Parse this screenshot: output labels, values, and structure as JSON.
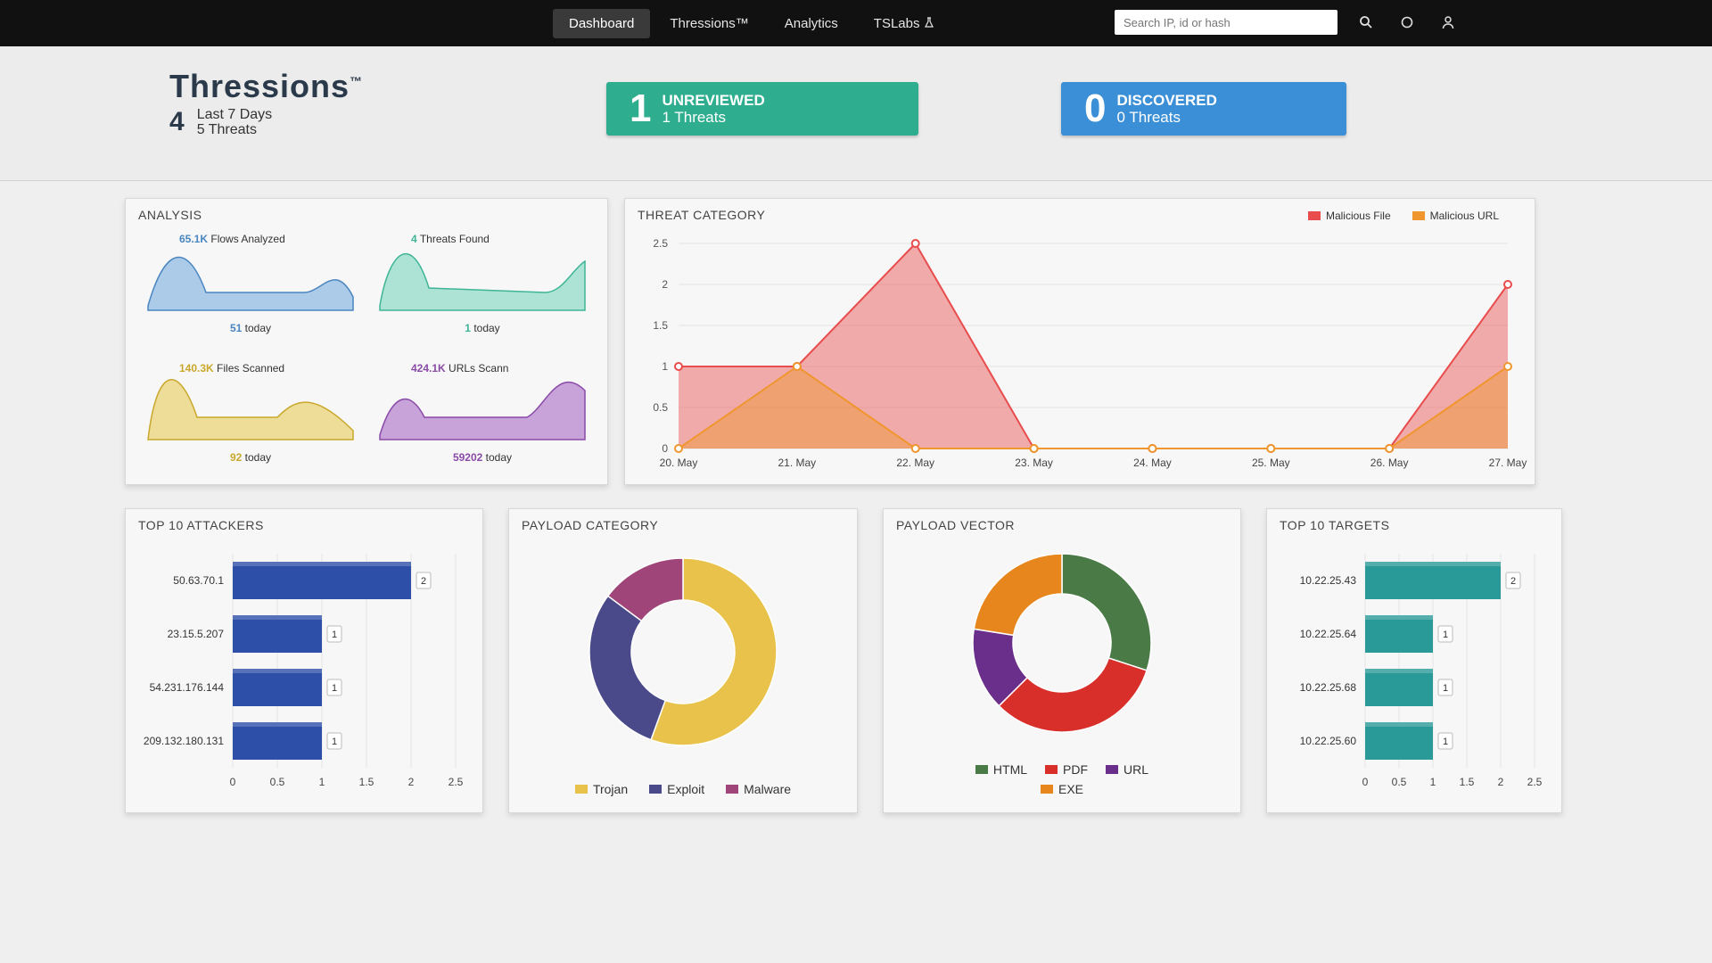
{
  "nav": {
    "tabs": [
      {
        "label": "Dashboard",
        "active": true
      },
      {
        "label": "Thressions™",
        "active": false
      },
      {
        "label": "Analytics",
        "active": false
      },
      {
        "label": "TSLabs",
        "active": false
      }
    ],
    "search_placeholder": "Search IP, id or hash",
    "icons": [
      "search-icon",
      "circle-icon",
      "user-icon"
    ]
  },
  "brand": {
    "title": "Thressions",
    "tm": "™",
    "count": "4",
    "line1": "Last 7 Days",
    "line2": "5 Threats"
  },
  "unreviewed": {
    "count": "1",
    "label": "UNREVIEWED",
    "sub": "1 Threats",
    "color": "#2fae8f"
  },
  "discovered": {
    "count": "0",
    "label": "DISCOVERED",
    "sub": "0 Threats",
    "color": "#3b8fd6"
  },
  "analysis": {
    "title": "ANALYSIS",
    "cards": [
      {
        "num": "65.1K",
        "label": "Flows Analyzed",
        "today_num": "51",
        "today": "today",
        "color": "#6fa8dc"
      },
      {
        "num": "4",
        "label": "Threats Found",
        "today_num": "1",
        "today": "today",
        "color": "#6fd3b8"
      },
      {
        "num": "140.3K",
        "label": "Files Scanned",
        "today_num": "92",
        "today": "today",
        "color": "#e8c95a"
      },
      {
        "num": "424.1K",
        "label": "URLs Scann",
        "today_num": "59202",
        "today": "today",
        "color": "#a66bc4"
      }
    ]
  },
  "threat_category": {
    "title": "THREAT CATEGORY",
    "legend": [
      {
        "label": "Malicious File",
        "color": "#e84c4c"
      },
      {
        "label": "Malicious URL",
        "color": "#f0962e"
      }
    ]
  },
  "top_attackers": {
    "title": "TOP 10 ATTACKERS"
  },
  "payload_category": {
    "title": "PAYLOAD CATEGORY",
    "legend": [
      {
        "label": "Trojan",
        "color": "#e8c24a"
      },
      {
        "label": "Exploit",
        "color": "#4a4a8a"
      },
      {
        "label": "Malware",
        "color": "#a0457a"
      }
    ]
  },
  "payload_vector": {
    "title": "PAYLOAD VECTOR",
    "legend": [
      {
        "label": "HTML",
        "color": "#4a7a45"
      },
      {
        "label": "PDF",
        "color": "#d92f2a"
      },
      {
        "label": "URL",
        "color": "#6a2f8a"
      },
      {
        "label": "EXE",
        "color": "#e8861e"
      }
    ]
  },
  "top_targets": {
    "title": "TOP 10 TARGETS"
  },
  "chart_data": [
    {
      "type": "area",
      "title": "THREAT CATEGORY",
      "categories": [
        "20. May",
        "21. May",
        "22. May",
        "23. May",
        "24. May",
        "25. May",
        "26. May",
        "27. May"
      ],
      "ylim": [
        0,
        2.5
      ],
      "yticks": [
        "0",
        "0.5",
        "1",
        "1.5",
        "2",
        "2.5"
      ],
      "series": [
        {
          "name": "Malicious File",
          "values": [
            1,
            1,
            2.5,
            0,
            0,
            0,
            0,
            2
          ],
          "color": "#e84c4c"
        },
        {
          "name": "Malicious URL",
          "values": [
            0,
            1,
            0,
            0,
            0,
            0,
            0,
            1
          ],
          "color": "#f0962e"
        }
      ]
    },
    {
      "type": "bar",
      "title": "TOP 10 ATTACKERS",
      "orientation": "horizontal",
      "categories": [
        "50.63.70.1",
        "23.15.5.207",
        "54.231.176.144",
        "209.132.180.131"
      ],
      "values": [
        2,
        1,
        1,
        1
      ],
      "xlim": [
        0,
        2.5
      ],
      "xticks": [
        "0",
        "0.5",
        "1",
        "1.5",
        "2",
        "2.5"
      ],
      "color": "#2e4fa8"
    },
    {
      "type": "pie",
      "title": "PAYLOAD CATEGORY",
      "categories": [
        "Trojan",
        "Exploit",
        "Malware"
      ],
      "values": [
        3,
        1.6,
        0.8
      ]
    },
    {
      "type": "pie",
      "title": "PAYLOAD VECTOR",
      "categories": [
        "HTML",
        "PDF",
        "URL",
        "EXE"
      ],
      "values": [
        1.2,
        1.3,
        0.6,
        0.9
      ]
    },
    {
      "type": "bar",
      "title": "TOP 10 TARGETS",
      "orientation": "horizontal",
      "categories": [
        "10.22.25.43",
        "10.22.25.64",
        "10.22.25.68",
        "10.22.25.60"
      ],
      "values": [
        2,
        1,
        1,
        1
      ],
      "xlim": [
        0,
        2.5
      ],
      "xticks": [
        "0",
        "0.5",
        "1",
        "1.5",
        "2",
        "2.5"
      ],
      "color": "#2a9a98"
    }
  ]
}
